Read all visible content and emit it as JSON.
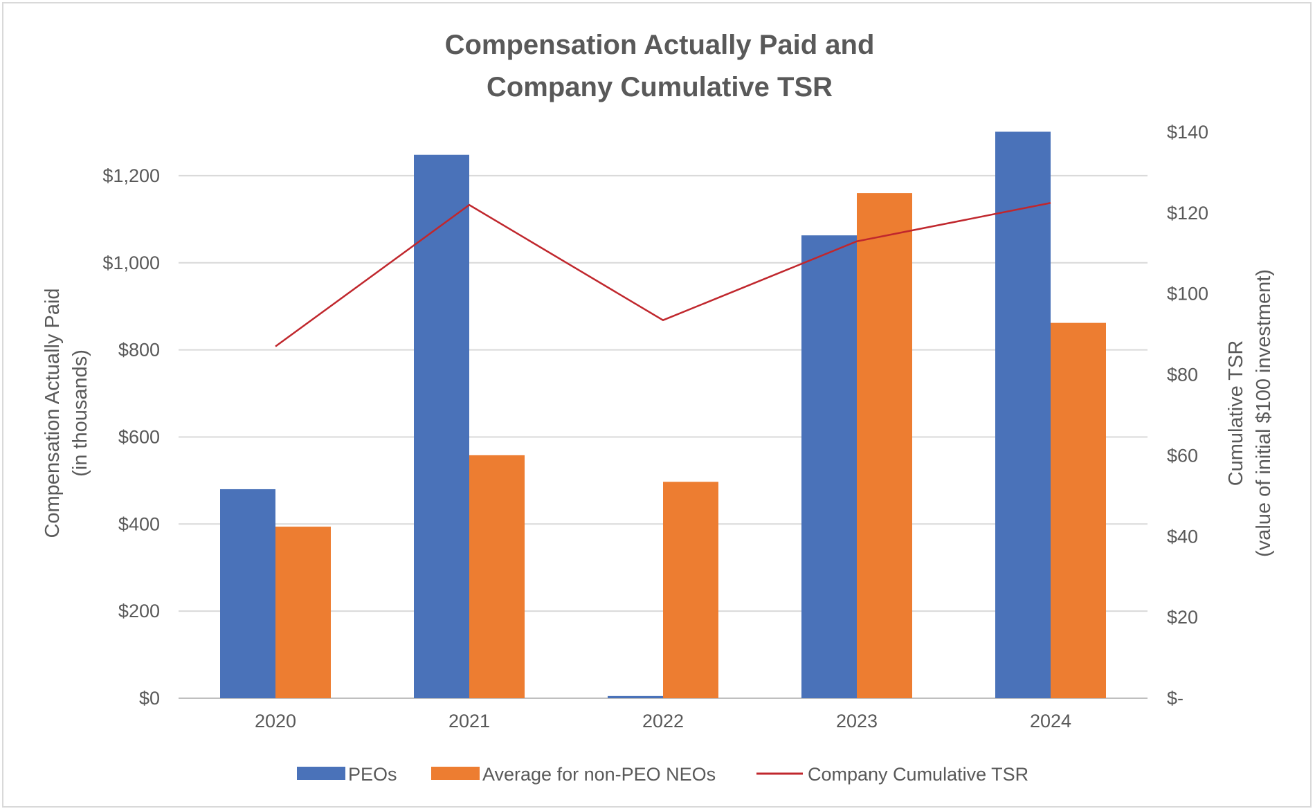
{
  "chart_data": {
    "type": "bar",
    "title_lines": [
      "Compensation Actually Paid and",
      "Company Cumulative TSR"
    ],
    "categories": [
      "2020",
      "2021",
      "2022",
      "2023",
      "2024"
    ],
    "series": [
      {
        "name": "PEOs",
        "kind": "bar",
        "axis": "left",
        "color": "#4a72b9",
        "values": [
          480,
          1248,
          5,
          1063,
          1301
        ]
      },
      {
        "name": "Average for non-PEO NEOs",
        "kind": "bar",
        "axis": "left",
        "color": "#ed7d31",
        "values": [
          394,
          558,
          497,
          1160,
          862
        ]
      },
      {
        "name": "Company Cumulative TSR",
        "kind": "line",
        "axis": "right",
        "color": "#c0272d",
        "values": [
          87,
          122,
          93.5,
          113,
          122.5
        ]
      }
    ],
    "y_left": {
      "label_lines": [
        "Compensation Actually Paid",
        "(in thousands)"
      ],
      "range": [
        0,
        1300
      ],
      "ticks": [
        0,
        200,
        400,
        600,
        800,
        1000,
        1200
      ],
      "tick_labels": [
        "$0",
        "$200",
        "$400",
        "$600",
        "$800",
        "$1,000",
        "$1,200"
      ]
    },
    "y_right": {
      "label_lines": [
        "Cumulative TSR",
        "(value of initial $100 investment)"
      ],
      "range": [
        0,
        140
      ],
      "ticks": [
        0,
        20,
        40,
        60,
        80,
        100,
        120,
        140
      ],
      "tick_labels": [
        "$-",
        "$20",
        "$40",
        "$60",
        "$80",
        "$100",
        "$120",
        "$140"
      ]
    },
    "grid": true,
    "legend_position": "bottom"
  }
}
